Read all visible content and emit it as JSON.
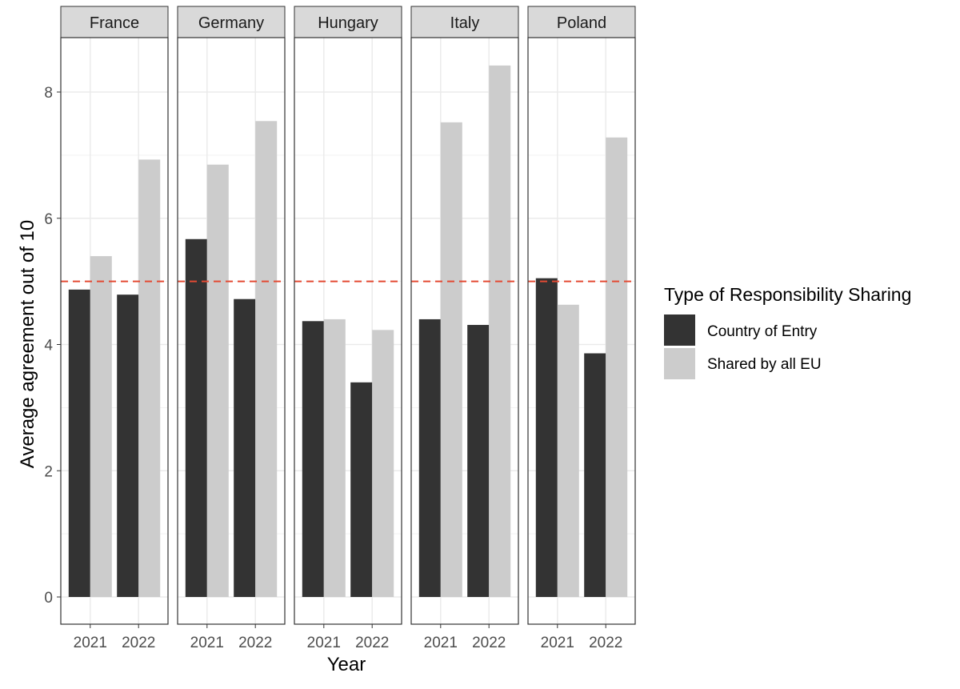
{
  "chart_data": {
    "type": "bar",
    "layout": "faceted by country",
    "xlabel": "Year",
    "ylabel": "Average agreement out of 10",
    "ylim": [
      0,
      8.8
    ],
    "y_ticks": [
      "0",
      "2",
      "4",
      "6",
      "8"
    ],
    "x_categories": [
      "2021",
      "2022"
    ],
    "reference_line": {
      "y": 5,
      "style": "dashed",
      "color": "#e34a33"
    },
    "grid": true,
    "legend": {
      "title": "Type of Responsibility Sharing",
      "position": "right",
      "entries": [
        {
          "name": "Country of Entry",
          "color": "#333333"
        },
        {
          "name": "Shared by all EU",
          "color": "#cccccc"
        }
      ]
    },
    "series": [
      {
        "name": "Country of Entry",
        "color": "#333333"
      },
      {
        "name": "Shared by all EU",
        "color": "#cccccc"
      }
    ],
    "panels": [
      {
        "label": "France",
        "values": {
          "2021": [
            4.87,
            5.4
          ],
          "2022": [
            4.79,
            6.93
          ]
        }
      },
      {
        "label": "Germany",
        "values": {
          "2021": [
            5.67,
            6.85
          ],
          "2022": [
            4.72,
            7.54
          ]
        }
      },
      {
        "label": "Hungary",
        "values": {
          "2021": [
            4.37,
            4.4
          ],
          "2022": [
            3.4,
            4.23
          ]
        }
      },
      {
        "label": "Italy",
        "values": {
          "2021": [
            4.4,
            7.52
          ],
          "2022": [
            4.31,
            8.42
          ]
        }
      },
      {
        "label": "Poland",
        "values": {
          "2021": [
            5.05,
            4.63
          ],
          "2022": [
            3.86,
            7.28
          ]
        }
      }
    ]
  }
}
